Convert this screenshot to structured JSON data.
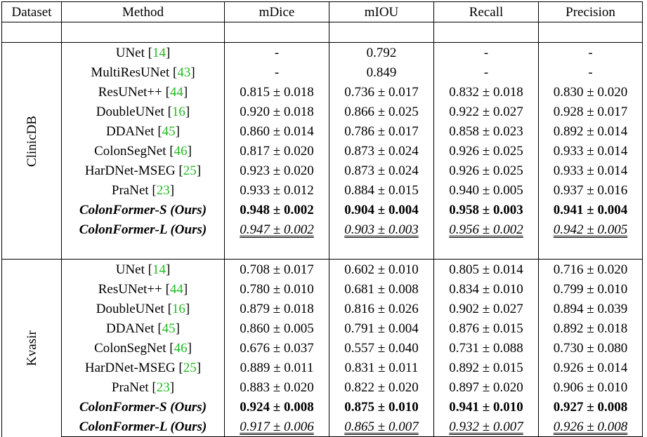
{
  "headers": [
    "Dataset",
    "Method",
    "mDice",
    "mIOU",
    "Recall",
    "Precision"
  ],
  "groups": [
    {
      "dataset": "ClinicDB",
      "rows": [
        {
          "name": "UNet",
          "ref": "14",
          "style": "normal",
          "vals": [
            "-",
            "0.792",
            "-",
            "-"
          ]
        },
        {
          "name": "MultiResUNet",
          "ref": "43",
          "style": "normal",
          "vals": [
            "-",
            "0.849",
            "-",
            "-"
          ]
        },
        {
          "name": "ResUNet++",
          "ref": "44",
          "style": "normal",
          "vals": [
            "0.815 ± 0.018",
            "0.736 ± 0.017",
            "0.832 ± 0.018",
            "0.830 ± 0.020"
          ]
        },
        {
          "name": "DoubleUNet",
          "ref": "16",
          "style": "normal",
          "vals": [
            "0.920 ± 0.018",
            "0.866 ± 0.025",
            "0.922 ± 0.027",
            "0.928 ± 0.017"
          ]
        },
        {
          "name": "DDANet",
          "ref": "45",
          "style": "normal",
          "vals": [
            "0.860 ± 0.014",
            "0.786 ± 0.017",
            "0.858 ± 0.023",
            "0.892 ± 0.014"
          ]
        },
        {
          "name": "ColonSegNet",
          "ref": "46",
          "style": "normal",
          "vals": [
            "0.817 ± 0.020",
            "0.873 ± 0.024",
            "0.926 ± 0.025",
            "0.933 ± 0.014"
          ]
        },
        {
          "name": "HarDNet-MSEG",
          "ref": "25",
          "style": "normal",
          "vals": [
            "0.923 ± 0.020",
            "0.873 ± 0.024",
            "0.926 ± 0.025",
            "0.933 ± 0.014"
          ]
        },
        {
          "name": "PraNet",
          "ref": "23",
          "style": "normal",
          "vals": [
            "0.933 ± 0.012",
            "0.884 ± 0.015",
            "0.940 ± 0.005",
            "0.937 ± 0.016"
          ]
        },
        {
          "name": "ColonFormer-S (Ours)",
          "ref": "",
          "style": "best",
          "vals": [
            "0.948 ± 0.002",
            "0.904 ± 0.004",
            "0.958 ± 0.003",
            "0.941 ± 0.004"
          ]
        },
        {
          "name": "ColonFormer-L (Ours)",
          "ref": "",
          "style": "second",
          "vals": [
            "0.947 ± 0.002",
            "0.903 ± 0.003",
            "0.956 ± 0.002",
            "0.942 ± 0.005"
          ]
        }
      ]
    },
    {
      "dataset": "Kvasir",
      "rows": [
        {
          "name": "UNet",
          "ref": "14",
          "style": "normal",
          "vals": [
            "0.708 ± 0.017",
            "0.602 ± 0.010",
            "0.805 ± 0.014",
            "0.716 ± 0.020"
          ]
        },
        {
          "name": "ResUNet++",
          "ref": "44",
          "style": "normal",
          "vals": [
            "0.780 ± 0.010",
            "0.681 ± 0.008",
            "0.834 ± 0.010",
            "0.799 ± 0.010"
          ]
        },
        {
          "name": "DoubleUNet",
          "ref": "16",
          "style": "normal",
          "vals": [
            "0.879 ± 0.018",
            "0.816 ± 0.026",
            "0.902 ± 0.027",
            "0.894 ± 0.039"
          ]
        },
        {
          "name": "DDANet",
          "ref": "45",
          "style": "normal",
          "vals": [
            "0.860 ± 0.005",
            "0.791 ± 0.004",
            "0.876 ± 0.015",
            "0.892 ± 0.018"
          ]
        },
        {
          "name": "ColonSegNet",
          "ref": "46",
          "style": "normal",
          "vals": [
            "0.676 ± 0.037",
            "0.557 ± 0.040",
            "0.731 ± 0.088",
            "0.730 ± 0.080"
          ]
        },
        {
          "name": "HarDNet-MSEG",
          "ref": "25",
          "style": "normal",
          "vals": [
            "0.889 ± 0.011",
            "0.831 ± 0.011",
            "0.892 ± 0.015",
            "0.926 ± 0.014"
          ]
        },
        {
          "name": "PraNet",
          "ref": "23",
          "style": "normal",
          "vals": [
            "0.883 ± 0.020",
            "0.822 ± 0.020",
            "0.897 ± 0.020",
            "0.906 ± 0.010"
          ]
        },
        {
          "name": "ColonFormer-S (Ours)",
          "ref": "",
          "style": "best",
          "vals": [
            "0.924 ± 0.008",
            "0.875 ± 0.010",
            "0.941 ± 0.010",
            "0.927 ± 0.008"
          ]
        },
        {
          "name": "ColonFormer-L (Ours)",
          "ref": "",
          "style": "second",
          "vals": [
            "0.917 ± 0.006",
            "0.865 ± 0.007",
            "0.932 ± 0.007",
            "0.926 ± 0.008"
          ]
        }
      ]
    }
  ]
}
